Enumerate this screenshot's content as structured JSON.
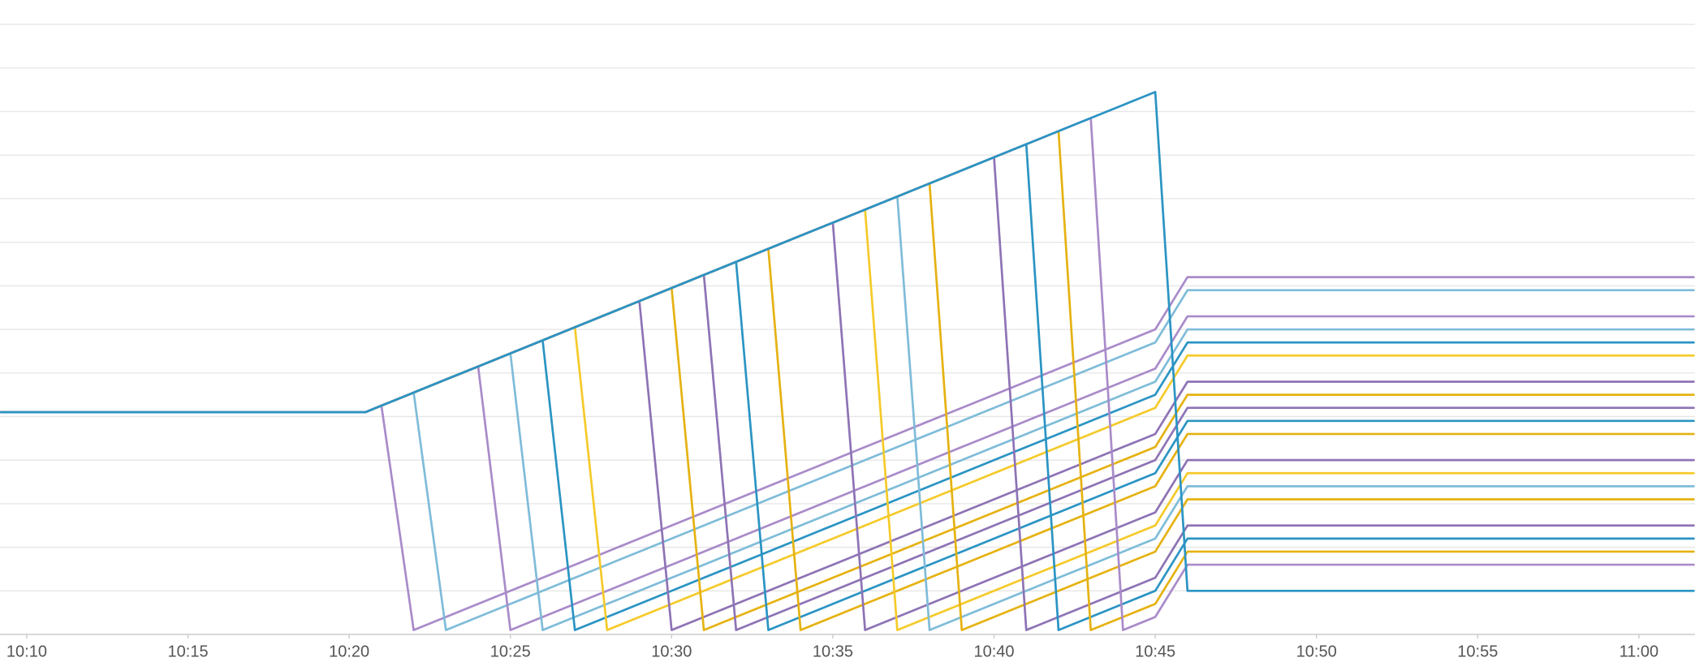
{
  "chart_data": {
    "type": "line",
    "grid": true,
    "xlim": [
      609.17,
      661.74
    ],
    "ylim": [
      0,
      14.56
    ],
    "yticks": [
      0,
      1,
      2,
      3,
      4,
      5,
      6,
      7,
      8,
      9,
      10,
      11,
      12,
      13,
      14
    ],
    "xticks": [
      {
        "value": 610,
        "label": "10:10"
      },
      {
        "value": 615,
        "label": "10:15"
      },
      {
        "value": 620,
        "label": "10:20"
      },
      {
        "value": 625,
        "label": "10:25"
      },
      {
        "value": 630,
        "label": "10:30"
      },
      {
        "value": 635,
        "label": "10:35"
      },
      {
        "value": 640,
        "label": "10:40"
      },
      {
        "value": 645,
        "label": "10:45"
      },
      {
        "value": 650,
        "label": "10:50"
      },
      {
        "value": 655,
        "label": "10:55"
      },
      {
        "value": 660,
        "label": "11:00"
      }
    ],
    "x": [
      609.2,
      620.5,
      621,
      622,
      623,
      624,
      625,
      626,
      627,
      628,
      629,
      630,
      631,
      632,
      633,
      634,
      635,
      636,
      637,
      638,
      639,
      640,
      641,
      642,
      643,
      644,
      645,
      646,
      650,
      655,
      661.7
    ],
    "series": [
      {
        "color": "#a98bc9",
        "values": [
          5.1,
          5.1,
          5.25,
          0.1,
          0.4,
          0.7,
          1.0,
          1.3,
          1.6,
          1.9,
          2.2,
          2.5,
          2.8,
          3.1,
          3.4,
          3.7,
          4.0,
          4.3,
          4.6,
          4.9,
          5.2,
          5.5,
          5.8,
          6.1,
          6.4,
          6.7,
          7.0,
          8.2,
          8.2,
          8.2,
          8.2
        ]
      },
      {
        "color": "#7fbcd9",
        "values": [
          5.1,
          5.1,
          5.25,
          5.55,
          0.1,
          0.4,
          0.7,
          1.0,
          1.3,
          1.6,
          1.9,
          2.2,
          2.5,
          2.8,
          3.1,
          3.4,
          3.7,
          4.0,
          4.3,
          4.6,
          4.9,
          5.2,
          5.5,
          5.8,
          6.1,
          6.4,
          6.7,
          7.9,
          7.9,
          7.9,
          7.9
        ]
      },
      {
        "color": "#a98bc9",
        "values": [
          5.1,
          5.1,
          5.25,
          5.55,
          5.85,
          6.15,
          0.1,
          0.4,
          0.7,
          1.0,
          1.3,
          1.6,
          1.9,
          2.2,
          2.5,
          2.8,
          3.1,
          3.4,
          3.7,
          4.0,
          4.3,
          4.6,
          4.9,
          5.2,
          5.5,
          5.8,
          6.1,
          7.3,
          7.3,
          7.3,
          7.3
        ]
      },
      {
        "color": "#7fbcd9",
        "values": [
          5.1,
          5.1,
          5.25,
          5.55,
          5.85,
          6.15,
          6.45,
          0.1,
          0.4,
          0.7,
          1.0,
          1.3,
          1.6,
          1.9,
          2.2,
          2.5,
          2.8,
          3.1,
          3.4,
          3.7,
          4.0,
          4.3,
          4.6,
          4.9,
          5.2,
          5.5,
          5.8,
          7.0,
          7.0,
          7.0,
          7.0
        ]
      },
      {
        "color": "#2b94c3",
        "values": [
          5.1,
          5.1,
          5.25,
          5.55,
          5.85,
          6.15,
          6.45,
          6.75,
          0.1,
          0.4,
          0.7,
          1.0,
          1.3,
          1.6,
          1.9,
          2.2,
          2.5,
          2.8,
          3.1,
          3.4,
          3.7,
          4.0,
          4.3,
          4.6,
          4.9,
          5.2,
          5.5,
          6.7,
          6.7,
          6.7,
          6.7
        ]
      },
      {
        "color": "#f5ca2a",
        "values": [
          5.1,
          5.1,
          5.25,
          5.55,
          5.85,
          6.15,
          6.45,
          6.75,
          7.05,
          0.1,
          0.4,
          0.7,
          1.0,
          1.3,
          1.6,
          1.9,
          2.2,
          2.5,
          2.8,
          3.1,
          3.4,
          3.7,
          4.0,
          4.3,
          4.6,
          4.9,
          5.2,
          6.4,
          6.4,
          6.4,
          6.4
        ]
      },
      {
        "color": "#8e73b5",
        "values": [
          5.1,
          5.1,
          5.25,
          5.55,
          5.85,
          6.15,
          6.45,
          6.75,
          7.05,
          7.35,
          7.65,
          0.1,
          0.4,
          0.7,
          1.0,
          1.3,
          1.6,
          1.9,
          2.2,
          2.5,
          2.8,
          3.1,
          3.4,
          3.7,
          4.0,
          4.3,
          4.6,
          5.8,
          5.8,
          5.8,
          5.8
        ]
      },
      {
        "color": "#e5b212",
        "values": [
          5.1,
          5.1,
          5.25,
          5.55,
          5.85,
          6.15,
          6.45,
          6.75,
          7.05,
          7.35,
          7.65,
          7.95,
          0.1,
          0.4,
          0.7,
          1.0,
          1.3,
          1.6,
          1.9,
          2.2,
          2.5,
          2.8,
          3.1,
          3.4,
          3.7,
          4.0,
          4.3,
          5.5,
          5.5,
          5.5,
          5.5
        ]
      },
      {
        "color": "#8e73b5",
        "values": [
          5.1,
          5.1,
          5.25,
          5.55,
          5.85,
          6.15,
          6.45,
          6.75,
          7.05,
          7.35,
          7.65,
          7.95,
          8.25,
          0.1,
          0.4,
          0.7,
          1.0,
          1.3,
          1.6,
          1.9,
          2.2,
          2.5,
          2.8,
          3.1,
          3.4,
          3.7,
          4.0,
          5.2,
          5.2,
          5.2,
          5.2
        ]
      },
      {
        "color": "#2b94c3",
        "values": [
          5.1,
          5.1,
          5.25,
          5.55,
          5.85,
          6.15,
          6.45,
          6.75,
          7.05,
          7.35,
          7.65,
          7.95,
          8.25,
          8.55,
          0.1,
          0.4,
          0.7,
          1.0,
          1.3,
          1.6,
          1.9,
          2.2,
          2.5,
          2.8,
          3.1,
          3.4,
          3.7,
          4.9,
          4.9,
          4.9,
          4.9
        ]
      },
      {
        "color": "#e5b212",
        "values": [
          5.1,
          5.1,
          5.25,
          5.55,
          5.85,
          6.15,
          6.45,
          6.75,
          7.05,
          7.35,
          7.65,
          7.95,
          8.25,
          8.55,
          8.85,
          0.1,
          0.4,
          0.7,
          1.0,
          1.3,
          1.6,
          1.9,
          2.2,
          2.5,
          2.8,
          3.1,
          3.4,
          4.6,
          4.6,
          4.6,
          4.6
        ]
      },
      {
        "color": "#8e73b5",
        "values": [
          5.1,
          5.1,
          5.25,
          5.55,
          5.85,
          6.15,
          6.45,
          6.75,
          7.05,
          7.35,
          7.65,
          7.95,
          8.25,
          8.55,
          8.85,
          9.15,
          9.45,
          0.1,
          0.4,
          0.7,
          1.0,
          1.3,
          1.6,
          1.9,
          2.2,
          2.5,
          2.8,
          4.0,
          4.0,
          4.0,
          4.0
        ]
      },
      {
        "color": "#f5ca2a",
        "values": [
          5.1,
          5.1,
          5.25,
          5.55,
          5.85,
          6.15,
          6.45,
          6.75,
          7.05,
          7.35,
          7.65,
          7.95,
          8.25,
          8.55,
          8.85,
          9.15,
          9.45,
          9.75,
          0.1,
          0.4,
          0.7,
          1.0,
          1.3,
          1.6,
          1.9,
          2.2,
          2.5,
          3.7,
          3.7,
          3.7,
          3.7
        ]
      },
      {
        "color": "#7fbcd9",
        "values": [
          5.1,
          5.1,
          5.25,
          5.55,
          5.85,
          6.15,
          6.45,
          6.75,
          7.05,
          7.35,
          7.65,
          7.95,
          8.25,
          8.55,
          8.85,
          9.15,
          9.45,
          9.75,
          10.05,
          0.1,
          0.4,
          0.7,
          1.0,
          1.3,
          1.6,
          1.9,
          2.2,
          3.4,
          3.4,
          3.4,
          3.4
        ]
      },
      {
        "color": "#e5b212",
        "values": [
          5.1,
          5.1,
          5.25,
          5.55,
          5.85,
          6.15,
          6.45,
          6.75,
          7.05,
          7.35,
          7.65,
          7.95,
          8.25,
          8.55,
          8.85,
          9.15,
          9.45,
          9.75,
          10.05,
          10.35,
          0.1,
          0.4,
          0.7,
          1.0,
          1.3,
          1.6,
          1.9,
          3.1,
          3.1,
          3.1,
          3.1
        ]
      },
      {
        "color": "#8e73b5",
        "values": [
          5.1,
          5.1,
          5.25,
          5.55,
          5.85,
          6.15,
          6.45,
          6.75,
          7.05,
          7.35,
          7.65,
          7.95,
          8.25,
          8.55,
          8.85,
          9.15,
          9.45,
          9.75,
          10.05,
          10.35,
          10.65,
          10.95,
          0.1,
          0.4,
          0.7,
          1.0,
          1.3,
          2.5,
          2.5,
          2.5,
          2.5
        ]
      },
      {
        "color": "#2b94c3",
        "values": [
          5.1,
          5.1,
          5.25,
          5.55,
          5.85,
          6.15,
          6.45,
          6.75,
          7.05,
          7.35,
          7.65,
          7.95,
          8.25,
          8.55,
          8.85,
          9.15,
          9.45,
          9.75,
          10.05,
          10.35,
          10.65,
          10.95,
          11.25,
          0.1,
          0.4,
          0.7,
          1.0,
          2.2,
          2.2,
          2.2,
          2.2
        ]
      },
      {
        "color": "#e5b212",
        "values": [
          5.1,
          5.1,
          5.25,
          5.55,
          5.85,
          6.15,
          6.45,
          6.75,
          7.05,
          7.35,
          7.65,
          7.95,
          8.25,
          8.55,
          8.85,
          9.15,
          9.45,
          9.75,
          10.05,
          10.35,
          10.65,
          10.95,
          11.25,
          11.55,
          0.1,
          0.4,
          0.7,
          1.9,
          1.9,
          1.9,
          1.9
        ]
      },
      {
        "color": "#a98bc9",
        "values": [
          5.1,
          5.1,
          5.25,
          5.55,
          5.85,
          6.15,
          6.45,
          6.75,
          7.05,
          7.35,
          7.65,
          7.95,
          8.25,
          8.55,
          8.85,
          9.15,
          9.45,
          9.75,
          10.05,
          10.35,
          10.65,
          10.95,
          11.25,
          11.55,
          11.85,
          0.1,
          0.4,
          1.6,
          1.6,
          1.6,
          1.6
        ]
      },
      {
        "color": "#2b94c3",
        "values": [
          5.1,
          5.1,
          5.25,
          5.55,
          5.85,
          6.15,
          6.45,
          6.75,
          7.05,
          7.35,
          7.65,
          7.95,
          8.25,
          8.55,
          8.85,
          9.15,
          9.45,
          9.75,
          10.05,
          10.35,
          10.65,
          10.95,
          11.25,
          11.55,
          11.85,
          12.15,
          12.45,
          1.0,
          1.0,
          1.0,
          1.0
        ]
      }
    ]
  }
}
